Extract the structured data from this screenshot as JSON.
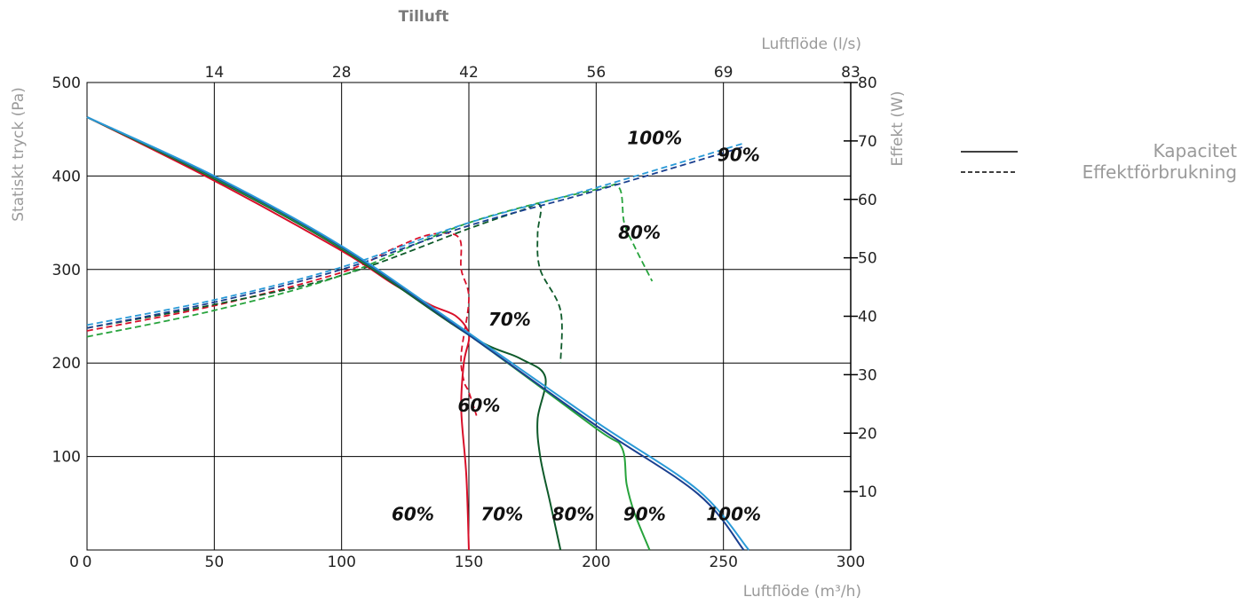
{
  "chart_data": {
    "type": "line",
    "title": "Tilluft",
    "xlabel": "Luftflöde (m³/h)",
    "x2label": "Luftflöde (l/s)",
    "ylabel": "Statiskt tryck (Pa)",
    "y2label": "Effekt (W)",
    "xlim": [
      0,
      300
    ],
    "ylim": [
      0,
      500
    ],
    "y2lim": [
      0,
      80
    ],
    "grid": true,
    "x_ticks": [
      "0",
      "50",
      "100",
      "150",
      "200",
      "250",
      "300"
    ],
    "x2_ticks": [
      "14",
      "28",
      "42",
      "56",
      "69",
      "83"
    ],
    "y_ticks": [
      "100",
      "200",
      "300",
      "400",
      "500"
    ],
    "y2_ticks": [
      "10",
      "20",
      "30",
      "40",
      "50",
      "60",
      "70",
      "80"
    ],
    "legend": {
      "position": "right",
      "items": [
        {
          "label": "Kapacitet",
          "style": "solid"
        },
        {
          "label": "Effektförbrukning",
          "style": "dashed"
        }
      ]
    },
    "colors": {
      "p60": "#d8102a",
      "p70": "#0e5a2a",
      "p80": "#27a33c",
      "p90": "#1a3f8f",
      "p100": "#2a9ad8",
      "grid": "#000000"
    },
    "capacity_series": [
      {
        "name": "60%",
        "color": "p60",
        "x": [
          0,
          50,
          100,
          120,
          135,
          145,
          150,
          148,
          147,
          149,
          150
        ],
        "y": [
          463,
          395,
          320,
          285,
          262,
          250,
          230,
          200,
          150,
          80,
          0
        ]
      },
      {
        "name": "70%",
        "color": "p70",
        "x": [
          0,
          50,
          100,
          150,
          170,
          180,
          177,
          178,
          182,
          186
        ],
        "y": [
          463,
          397,
          322,
          230,
          205,
          185,
          140,
          100,
          50,
          0
        ]
      },
      {
        "name": "80%",
        "color": "p80",
        "x": [
          0,
          50,
          100,
          150,
          200,
          210,
          212,
          215,
          221
        ],
        "y": [
          463,
          398,
          323,
          230,
          130,
          110,
          70,
          40,
          0
        ]
      },
      {
        "name": "90%",
        "color": "p90",
        "x": [
          0,
          50,
          100,
          150,
          200,
          240,
          258
        ],
        "y": [
          463,
          399,
          324,
          230,
          133,
          60,
          0
        ]
      },
      {
        "name": "100%",
        "color": "p100",
        "x": [
          0,
          50,
          100,
          150,
          200,
          240,
          260
        ],
        "y": [
          463,
          400,
          325,
          232,
          137,
          64,
          0
        ]
      }
    ],
    "power_series": [
      {
        "name": "60%",
        "color": "p60",
        "x": [
          0,
          50,
          100,
          120,
          135,
          146,
          147,
          150,
          147,
          148,
          150,
          153
        ],
        "y": [
          37.5,
          41.8,
          47.5,
          51.5,
          54,
          53.5,
          48,
          43,
          33.5,
          29,
          27,
          23
        ]
      },
      {
        "name": "70%",
        "color": "p70",
        "x": [
          0,
          50,
          100,
          150,
          170,
          178,
          177,
          178,
          186,
          186
        ],
        "y": [
          38,
          42,
          47,
          55,
          58,
          59,
          54,
          48,
          41,
          32
        ]
      },
      {
        "name": "80%",
        "color": "p80",
        "x": [
          0,
          50,
          100,
          150,
          200,
          209,
          211,
          215,
          222
        ],
        "y": [
          36.5,
          41,
          47,
          56,
          61.7,
          62,
          56,
          52,
          46
        ]
      },
      {
        "name": "90%",
        "color": "p90",
        "x": [
          0,
          50,
          100,
          150,
          200,
          258
        ],
        "y": [
          38,
          42.4,
          48,
          55.5,
          61.5,
          69
        ]
      },
      {
        "name": "100%",
        "color": "p100",
        "x": [
          0,
          50,
          100,
          150,
          200,
          258
        ],
        "y": [
          38.5,
          42.8,
          48.4,
          56,
          62,
          69.6
        ]
      }
    ],
    "annotations": [
      {
        "text": "60%",
        "x": 128,
        "y": 32
      },
      {
        "text": "70%",
        "x": 163,
        "y": 32
      },
      {
        "text": "80%",
        "x": 191,
        "y": 32
      },
      {
        "text": "90%",
        "x": 219,
        "y": 32
      },
      {
        "text": "100%",
        "x": 254,
        "y": 32
      },
      {
        "text": "60%",
        "x": 154,
        "y": 148
      },
      {
        "text": "70%",
        "x": 166,
        "y": 240
      },
      {
        "text": "80%",
        "x": 217,
        "y": 333
      },
      {
        "text": "100%",
        "x": 223,
        "y": 434
      },
      {
        "text": "90%",
        "x": 256,
        "y": 416
      }
    ]
  }
}
